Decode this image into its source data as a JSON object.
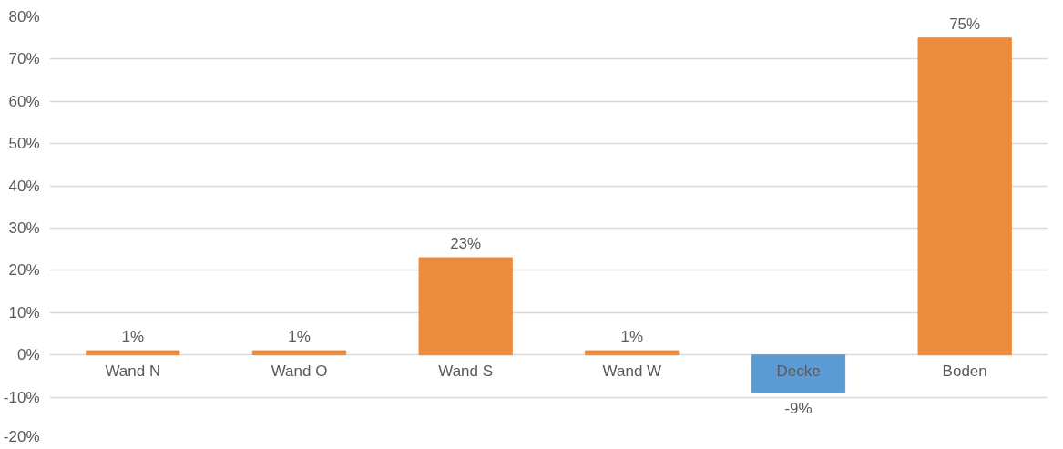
{
  "chart_data": {
    "type": "bar",
    "categories": [
      "Wand N",
      "Wand O",
      "Wand S",
      "Wand W",
      "Decke",
      "Boden"
    ],
    "values": [
      1,
      1,
      23,
      1,
      -9,
      75
    ],
    "colors": [
      "#ed8b3c",
      "#ed8b3c",
      "#ed8b3c",
      "#ed8b3c",
      "#5b9bd5",
      "#ed8b3c"
    ],
    "ylim": [
      -20,
      80
    ],
    "yticks": [
      {
        "value": -20,
        "label": "-20%"
      },
      {
        "value": -10,
        "label": "-10%"
      },
      {
        "value": 0,
        "label": "0%"
      },
      {
        "value": 10,
        "label": "10%"
      },
      {
        "value": 20,
        "label": "20%"
      },
      {
        "value": 30,
        "label": "30%"
      },
      {
        "value": 40,
        "label": "40%"
      },
      {
        "value": 50,
        "label": "50%"
      },
      {
        "value": 60,
        "label": "60%"
      },
      {
        "value": 70,
        "label": "70%"
      },
      {
        "value": 80,
        "label": "80%"
      }
    ],
    "value_labels": [
      "1%",
      "1%",
      "23%",
      "1%",
      "-9%",
      "75%"
    ],
    "grid": "y"
  }
}
